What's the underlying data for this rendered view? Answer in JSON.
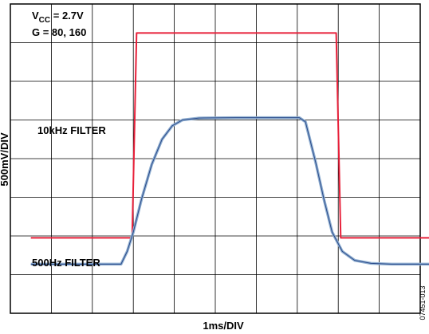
{
  "chart_data": {
    "type": "line",
    "title": "",
    "xlabel": "1ms/DIV",
    "ylabel": "500mV/DIV",
    "figure_id": "07451-013",
    "conditions": {
      "vcc_prefix": "V",
      "vcc_subscript": "CC",
      "vcc_value": " = 2.7V",
      "gain": "G = 80, 160"
    },
    "grid": true,
    "grid_divisions": {
      "x": 10,
      "y": 8
    },
    "xlim": [
      0,
      10
    ],
    "ylim": [
      0,
      8
    ],
    "series": [
      {
        "name": "10kHz FILTER",
        "color": "#e8203a",
        "points": [
          [
            0.5,
            1.95
          ],
          [
            2.97,
            1.95
          ],
          [
            3.08,
            7.25
          ],
          [
            7.95,
            7.25
          ],
          [
            8.06,
            1.95
          ],
          [
            10.5,
            1.95
          ]
        ]
      },
      {
        "name": "500Hz FILTER",
        "color": "#8faed0",
        "points": [
          [
            0.5,
            1.27
          ],
          [
            2.5,
            1.27
          ],
          [
            2.7,
            1.27
          ],
          [
            2.85,
            1.6
          ],
          [
            3.0,
            2.1
          ],
          [
            3.2,
            2.95
          ],
          [
            3.45,
            3.85
          ],
          [
            3.7,
            4.5
          ],
          [
            3.95,
            4.85
          ],
          [
            4.2,
            5.0
          ],
          [
            4.6,
            5.05
          ],
          [
            5.5,
            5.06
          ],
          [
            7.05,
            5.06
          ],
          [
            7.2,
            4.95
          ],
          [
            7.45,
            3.9
          ],
          [
            7.65,
            2.95
          ],
          [
            7.85,
            2.1
          ],
          [
            8.1,
            1.6
          ],
          [
            8.4,
            1.37
          ],
          [
            8.8,
            1.29
          ],
          [
            9.3,
            1.27
          ],
          [
            10.5,
            1.27
          ]
        ]
      }
    ]
  }
}
